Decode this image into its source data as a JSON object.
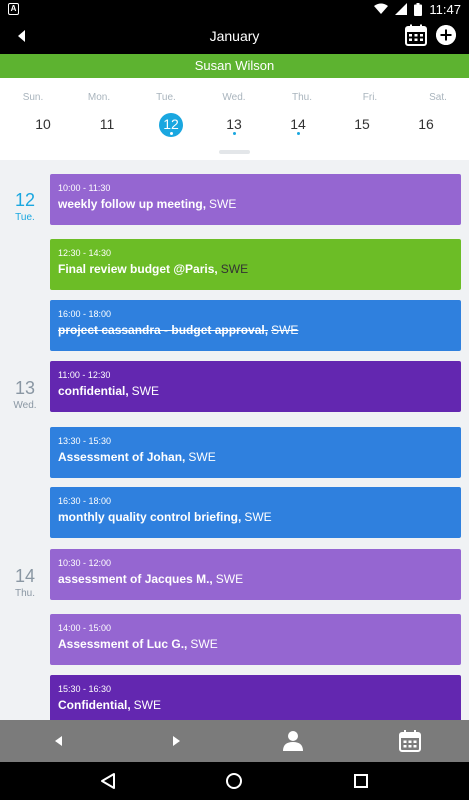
{
  "status_bar": {
    "time": "11:47",
    "battery_level": "full"
  },
  "app_bar": {
    "title": "January",
    "back_icon": "back-arrow-icon",
    "calendar_icon": "calendar-icon",
    "add_icon": "add-circle-icon"
  },
  "user_bar": {
    "name": "Susan Wilson",
    "color": "#5db330"
  },
  "week": {
    "days": [
      {
        "weekday": "Sun.",
        "number": "10",
        "selected": false,
        "has_events": false
      },
      {
        "weekday": "Mon.",
        "number": "11",
        "selected": false,
        "has_events": false
      },
      {
        "weekday": "Tue.",
        "number": "12",
        "selected": true,
        "has_events": true
      },
      {
        "weekday": "Wed.",
        "number": "13",
        "selected": false,
        "has_events": true
      },
      {
        "weekday": "Thu.",
        "number": "14",
        "selected": false,
        "has_events": true
      },
      {
        "weekday": "Fri.",
        "number": "15",
        "selected": false,
        "has_events": false
      },
      {
        "weekday": "Sat.",
        "number": "16",
        "selected": false,
        "has_events": false
      }
    ],
    "accent": "#1aa7e0"
  },
  "agenda": {
    "days": [
      {
        "number": "12",
        "weekday": "Tue.",
        "today": true
      },
      {
        "number": "13",
        "weekday": "Wed.",
        "today": false
      },
      {
        "number": "14",
        "weekday": "Thu.",
        "today": false
      }
    ],
    "events": [
      {
        "time": "10:00 - 11:30",
        "title": "weekly follow up meeting,",
        "location": "SWE",
        "color": "#9566d1",
        "cancelled": false
      },
      {
        "time": "12:30 - 14:30",
        "title": "Final review budget  @Paris,",
        "location": "SWE",
        "color": "#6cbd26",
        "cancelled": false
      },
      {
        "time": "16:00 - 18:00",
        "title": "project cassandra - budget approval,",
        "location": "SWE",
        "color": "#2f80de",
        "cancelled": true
      },
      {
        "time": "11:00 - 12:30",
        "title": "confidential,",
        "location": "SWE",
        "color": "#6327b0",
        "cancelled": false
      },
      {
        "time": "13:30 - 15:30",
        "title": "Assessment of Johan,",
        "location": "SWE",
        "color": "#2f80de",
        "cancelled": false
      },
      {
        "time": "16:30 - 18:00",
        "title": "monthly quality control briefing,",
        "location": "SWE",
        "color": "#2f80de",
        "cancelled": false
      },
      {
        "time": "10:30 - 12:00",
        "title": "assessment of Jacques M.,",
        "location": "SWE",
        "color": "#9566d1",
        "cancelled": false
      },
      {
        "time": "14:00 - 15:00",
        "title": "Assessment of Luc G.,",
        "location": "SWE",
        "color": "#9566d1",
        "cancelled": false
      },
      {
        "time": "15:30 - 16:30",
        "title": "Confidential,",
        "location": "SWE",
        "color": "#6327b0",
        "cancelled": false
      }
    ]
  },
  "bottom_nav": {
    "prev_icon": "prev-icon",
    "next_icon": "next-icon",
    "person_icon": "person-icon",
    "calendar_icon": "calendar-icon"
  },
  "system_nav": {
    "back_icon": "back-triangle-icon",
    "home_icon": "home-circle-icon",
    "recents_icon": "recents-square-icon"
  }
}
